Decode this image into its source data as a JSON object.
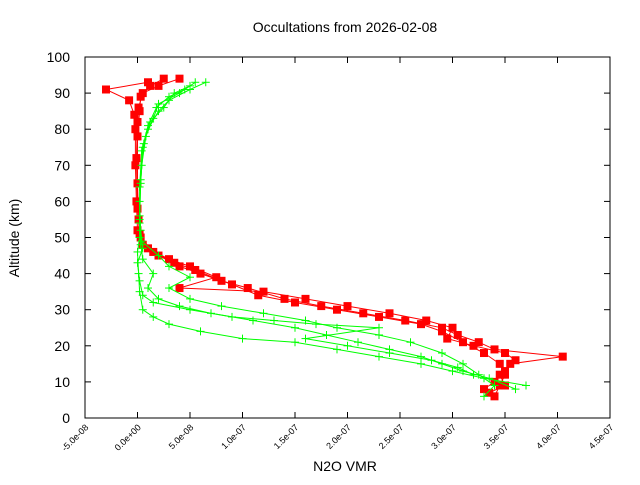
{
  "chart_data": {
    "type": "line",
    "title": "Occultations from 2026-02-08",
    "xlabel": "N2O VMR",
    "ylabel": "Altitude (km)",
    "xlim": [
      -5e-08,
      4.5e-07
    ],
    "ylim": [
      0,
      100
    ],
    "xticks": [
      "-5.0e-08",
      "0.0e+00",
      "5.0e-08",
      "1.0e-07",
      "1.5e-07",
      "2.0e-07",
      "2.5e-07",
      "3.0e-07",
      "3.5e-07",
      "4.0e-07",
      "4.5e-07"
    ],
    "yticks": [
      "0",
      "10",
      "20",
      "30",
      "40",
      "50",
      "60",
      "70",
      "80",
      "90",
      "100"
    ],
    "grid": false,
    "legend": "none",
    "series": [
      {
        "color": "#ff0000",
        "marker": "square",
        "profiles": [
          [
            [
              93,
              1e-08
            ],
            [
              91,
              -3e-08
            ],
            [
              88,
              -8e-09
            ],
            [
              84,
              -3e-09
            ],
            [
              80,
              -2e-09
            ],
            [
              70,
              -2e-09
            ],
            [
              60,
              -1e-09
            ],
            [
              52,
              0
            ],
            [
              48,
              5e-09
            ],
            [
              45,
              2e-08
            ],
            [
              42,
              4e-08
            ],
            [
              40,
              6e-08
            ],
            [
              37,
              9e-08
            ],
            [
              34,
              1.15e-07
            ],
            [
              32,
              1.5e-07
            ],
            [
              30,
              1.9e-07
            ],
            [
              28,
              2.3e-07
            ],
            [
              26,
              2.7e-07
            ],
            [
              24,
              2.9e-07
            ],
            [
              21,
              3.1e-07
            ],
            [
              18,
              3.3e-07
            ],
            [
              15,
              3.45e-07
            ],
            [
              12,
              3.5e-07
            ],
            [
              9,
              3.45e-07
            ],
            [
              6,
              3.4e-07
            ]
          ],
          [
            [
              94,
              2.5e-08
            ],
            [
              92,
              1.2e-08
            ],
            [
              89,
              3e-09
            ],
            [
              85,
              2e-09
            ],
            [
              78,
              0
            ],
            [
              65,
              0
            ],
            [
              55,
              1e-09
            ],
            [
              50,
              3e-09
            ],
            [
              46,
              1.5e-08
            ],
            [
              43,
              3.5e-08
            ],
            [
              41,
              5.5e-08
            ],
            [
              38,
              8e-08
            ],
            [
              36,
              1.05e-07
            ],
            [
              33,
              1.4e-07
            ],
            [
              31,
              1.75e-07
            ],
            [
              29,
              2.15e-07
            ],
            [
              27,
              2.55e-07
            ],
            [
              25,
              2.9e-07
            ],
            [
              23,
              3.05e-07
            ],
            [
              21,
              3.25e-07
            ],
            [
              19,
              3.4e-07
            ],
            [
              17,
              4.05e-07
            ],
            [
              15,
              3.55e-07
            ],
            [
              12,
              3.45e-07
            ],
            [
              9,
              3.5e-07
            ],
            [
              7,
              3.35e-07
            ]
          ],
          [
            [
              94,
              4e-08
            ],
            [
              92,
              2e-08
            ],
            [
              90,
              5e-09
            ],
            [
              86,
              1e-09
            ],
            [
              82,
              0
            ],
            [
              72,
              -1e-09
            ],
            [
              58,
              0
            ],
            [
              51,
              2e-09
            ],
            [
              47,
              1e-08
            ],
            [
              44,
              3e-08
            ],
            [
              42,
              5e-08
            ],
            [
              39,
              7.5e-08
            ],
            [
              36,
              4e-08
            ],
            [
              35,
              1.2e-07
            ],
            [
              33,
              1.6e-07
            ],
            [
              31,
              2e-07
            ],
            [
              29,
              2.4e-07
            ],
            [
              27,
              2.75e-07
            ],
            [
              25,
              3e-07
            ],
            [
              22,
              2.95e-07
            ],
            [
              20,
              3.2e-07
            ],
            [
              18,
              3.5e-07
            ],
            [
              16,
              3.6e-07
            ],
            [
              13,
              3.5e-07
            ],
            [
              10,
              3.4e-07
            ],
            [
              8,
              3.3e-07
            ]
          ]
        ]
      },
      {
        "color": "#00ff00",
        "marker": "plus",
        "profiles": [
          [
            [
              93,
              6.5e-08
            ],
            [
              91,
              5e-08
            ],
            [
              88,
              3e-08
            ],
            [
              85,
              2e-08
            ],
            [
              80,
              1e-08
            ],
            [
              75,
              5e-09
            ],
            [
              65,
              3e-09
            ],
            [
              55,
              2e-09
            ],
            [
              50,
              2e-09
            ],
            [
              46,
              0
            ],
            [
              40,
              1e-09
            ],
            [
              35,
              2e-09
            ],
            [
              30,
              5e-09
            ],
            [
              28,
              1.5e-08
            ],
            [
              26,
              3e-08
            ],
            [
              24,
              6e-08
            ],
            [
              22,
              1e-07
            ],
            [
              21,
              1.5e-07
            ],
            [
              19,
              1.9e-07
            ],
            [
              17,
              2.3e-07
            ],
            [
              15,
              2.7e-07
            ],
            [
              13,
              3e-07
            ],
            [
              11,
              3.3e-07
            ],
            [
              9,
              3.7e-07
            ]
          ],
          [
            [
              92,
              5e-08
            ],
            [
              90,
              3.5e-08
            ],
            [
              86,
              2.5e-08
            ],
            [
              82,
              1.2e-08
            ],
            [
              76,
              6e-09
            ],
            [
              66,
              3e-09
            ],
            [
              56,
              2e-09
            ],
            [
              48,
              3e-09
            ],
            [
              44,
              5e-09
            ],
            [
              40,
              1.5e-08
            ],
            [
              36,
              1e-08
            ],
            [
              33,
              2e-08
            ],
            [
              31,
              4e-08
            ],
            [
              29,
              7e-08
            ],
            [
              27,
              1.1e-07
            ],
            [
              25,
              1.5e-07
            ],
            [
              23,
              1.8e-07
            ],
            [
              21,
              2.1e-07
            ],
            [
              19,
              2.4e-07
            ],
            [
              17,
              2.7e-07
            ],
            [
              15,
              2.9e-07
            ],
            [
              13,
              3.1e-07
            ],
            [
              11,
              3.35e-07
            ],
            [
              8,
              3.6e-07
            ]
          ],
          [
            [
              93,
              5.5e-08
            ],
            [
              90,
              4e-08
            ],
            [
              87,
              2e-08
            ],
            [
              83,
              1.5e-08
            ],
            [
              78,
              8e-09
            ],
            [
              70,
              4e-09
            ],
            [
              60,
              2e-09
            ],
            [
              52,
              3e-09
            ],
            [
              47,
              5e-09
            ],
            [
              43,
              0
            ],
            [
              38,
              2e-09
            ],
            [
              34,
              5e-09
            ],
            [
              32,
              1.5e-08
            ],
            [
              30,
              5e-08
            ],
            [
              28,
              9e-08
            ],
            [
              27,
              1.3e-07
            ],
            [
              26,
              1.7e-07
            ],
            [
              25,
              2.3e-07
            ],
            [
              22,
              1.6e-07
            ],
            [
              20,
              2e-07
            ],
            [
              18,
              2.4e-07
            ],
            [
              16,
              2.8e-07
            ],
            [
              14,
              3.05e-07
            ],
            [
              12,
              3.2e-07
            ]
          ],
          [
            [
              91,
              4.5e-08
            ],
            [
              89,
              3e-08
            ],
            [
              86,
              1.8e-08
            ],
            [
              81,
              1e-08
            ],
            [
              74,
              4e-09
            ],
            [
              64,
              2e-09
            ],
            [
              54,
              2e-09
            ],
            [
              49,
              4e-09
            ],
            [
              45,
              2e-08
            ],
            [
              42,
              3e-08
            ],
            [
              39,
              5e-08
            ],
            [
              36,
              3e-08
            ],
            [
              33,
              5e-08
            ],
            [
              31,
              8e-08
            ],
            [
              29,
              1.2e-07
            ],
            [
              27,
              1.6e-07
            ],
            [
              25,
              1.9e-07
            ],
            [
              23,
              2.3e-07
            ],
            [
              21,
              2.6e-07
            ],
            [
              18,
              2.9e-07
            ],
            [
              15,
              3.1e-07
            ],
            [
              12,
              3.25e-07
            ],
            [
              9,
              3.4e-07
            ],
            [
              6,
              3.3e-07
            ]
          ]
        ]
      }
    ]
  }
}
